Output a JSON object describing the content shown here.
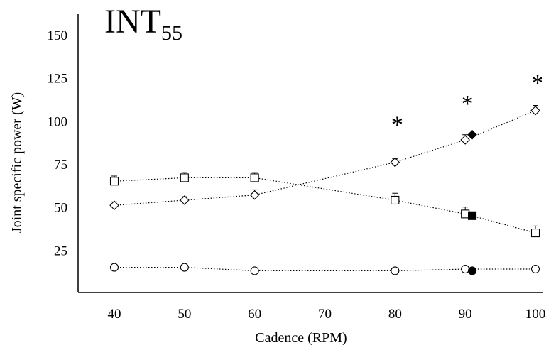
{
  "chart_data": {
    "type": "line",
    "title": "INT",
    "title_subscript": "55",
    "xlabel": "Cadence (RPM)",
    "ylabel": "Joint specific power (W)",
    "xlim": [
      35,
      101
    ],
    "ylim": [
      0,
      160
    ],
    "x_ticks": [
      40,
      50,
      60,
      70,
      80,
      90,
      100
    ],
    "y_ticks": [
      25,
      50,
      75,
      100,
      125,
      150
    ],
    "grid": false,
    "legend": "none",
    "series": [
      {
        "marker": "square",
        "line": "dotted",
        "x": [
          40,
          50,
          60,
          80,
          90,
          100
        ],
        "y": [
          65,
          67,
          67,
          54,
          46,
          35
        ],
        "error_up": [
          3,
          3,
          3,
          4,
          4,
          4
        ]
      },
      {
        "marker": "diamond",
        "line": "dotted",
        "x": [
          40,
          50,
          60,
          80,
          90,
          100
        ],
        "y": [
          51,
          54,
          57,
          76,
          89,
          106
        ],
        "error_up": [
          2,
          2,
          3,
          2,
          3,
          3
        ]
      },
      {
        "marker": "circle",
        "line": "dotted",
        "x": [
          40,
          50,
          60,
          80,
          90,
          100
        ],
        "y": [
          15,
          15,
          13,
          13,
          14,
          14
        ],
        "error_up": [
          0,
          0,
          0,
          0,
          0,
          0
        ]
      }
    ],
    "highlight_points": [
      {
        "marker": "square",
        "x": 91,
        "y": 45
      },
      {
        "marker": "diamond",
        "x": 91,
        "y": 92
      },
      {
        "marker": "circle",
        "x": 91,
        "y": 13
      }
    ],
    "annotations": [
      {
        "text": "*",
        "x": 80,
        "y": 100
      },
      {
        "text": "*",
        "x": 90,
        "y": 112
      },
      {
        "text": "*",
        "x": 100,
        "y": 124
      }
    ]
  }
}
